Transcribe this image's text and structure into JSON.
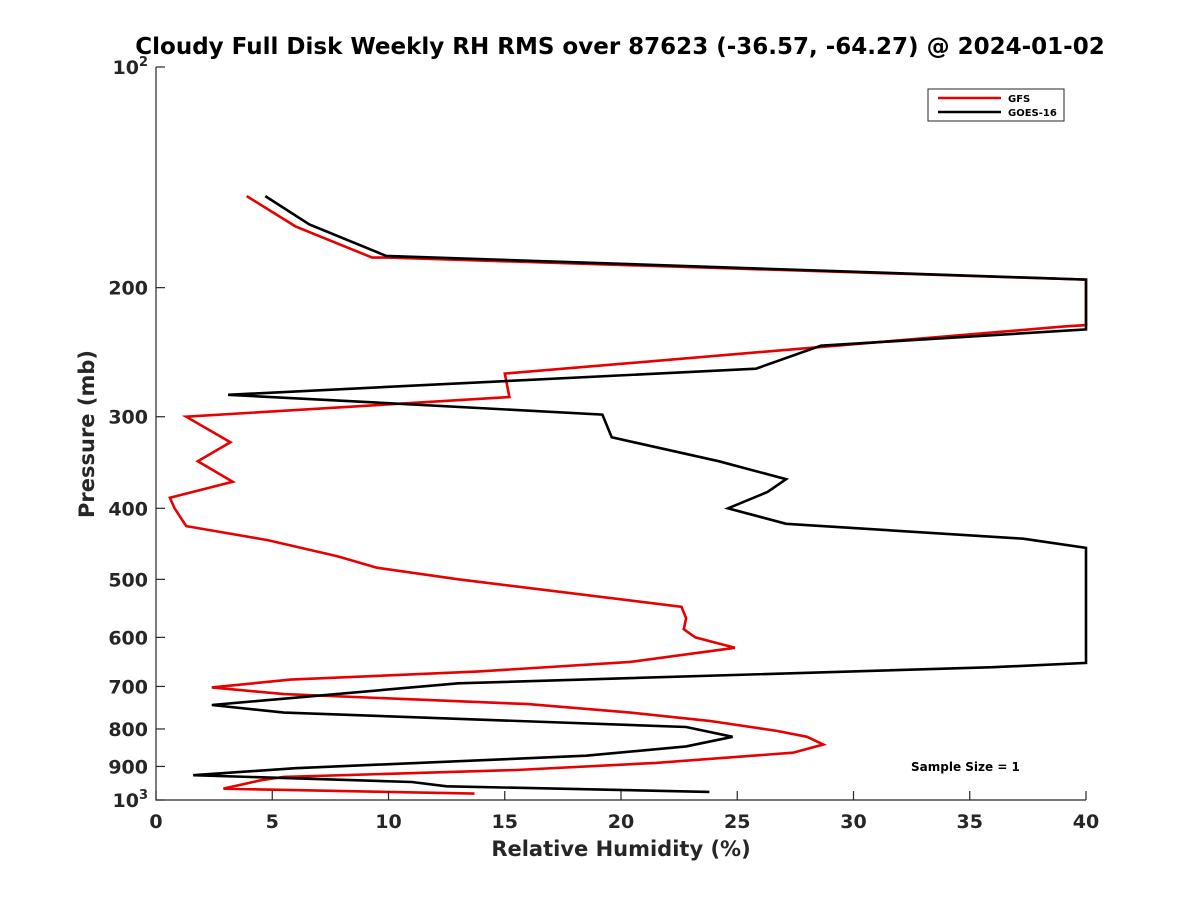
{
  "chart_data": {
    "type": "line",
    "title": "Cloudy Full Disk Weekly RH RMS over 87623 (-36.57, -64.27) @ 2024-01-02",
    "xlabel": "Relative Humidity (%)",
    "ylabel": "Pressure (mb)",
    "xlim": [
      0,
      40
    ],
    "ylim": [
      100,
      1000
    ],
    "y_scale": "log",
    "y_reversed": true,
    "grid": false,
    "legend_position": "top-right",
    "x_ticks": [
      0,
      5,
      10,
      15,
      20,
      25,
      30,
      35,
      40
    ],
    "y_ticks": [
      {
        "value": 100,
        "base": "10",
        "exp": "2"
      },
      {
        "value": 200,
        "label": "200"
      },
      {
        "value": 300,
        "label": "300"
      },
      {
        "value": 400,
        "label": "400"
      },
      {
        "value": 500,
        "label": "500"
      },
      {
        "value": 600,
        "label": "600"
      },
      {
        "value": 700,
        "label": "700"
      },
      {
        "value": 800,
        "label": "800"
      },
      {
        "value": 900,
        "label": "900"
      },
      {
        "value": 1000,
        "base": "10",
        "exp": "3"
      }
    ],
    "series": [
      {
        "name": "GFS",
        "color": "#e60000",
        "points": [
          [
            3.9,
            150
          ],
          [
            6.0,
            165
          ],
          [
            9.3,
            182
          ],
          [
            10.0,
            182
          ],
          [
            40.0,
            195
          ],
          [
            40.0,
            225
          ],
          [
            39.0,
            226
          ],
          [
            15.0,
            262
          ],
          [
            15.2,
            282
          ],
          [
            1.3,
            300
          ],
          [
            3.2,
            325
          ],
          [
            1.8,
            345
          ],
          [
            3.3,
            368
          ],
          [
            0.6,
            387
          ],
          [
            0.8,
            400
          ],
          [
            1.3,
            423
          ],
          [
            4.8,
            442
          ],
          [
            7.8,
            465
          ],
          [
            9.5,
            482
          ],
          [
            13.0,
            500
          ],
          [
            22.6,
            545
          ],
          [
            22.8,
            565
          ],
          [
            22.7,
            585
          ],
          [
            23.2,
            600
          ],
          [
            24.9,
            620
          ],
          [
            20.4,
            648
          ],
          [
            13.8,
            668
          ],
          [
            5.8,
            685
          ],
          [
            2.4,
            702
          ],
          [
            5.5,
            717
          ],
          [
            16.0,
            740
          ],
          [
            20.4,
            760
          ],
          [
            23.8,
            780
          ],
          [
            26.7,
            805
          ],
          [
            28.0,
            820
          ],
          [
            28.7,
            840
          ],
          [
            27.4,
            862
          ],
          [
            21.5,
            890
          ],
          [
            15.5,
            910
          ],
          [
            5.5,
            930
          ],
          [
            4.5,
            940
          ],
          [
            2.9,
            965
          ],
          [
            13.7,
            980
          ]
        ]
      },
      {
        "name": "GOES-16",
        "color": "#000000",
        "points": [
          [
            4.7,
            150
          ],
          [
            6.6,
            164
          ],
          [
            9.9,
            181
          ],
          [
            40.0,
            195
          ],
          [
            40.0,
            228
          ],
          [
            28.6,
            240
          ],
          [
            25.8,
            258
          ],
          [
            3.1,
            280
          ],
          [
            9.5,
            287
          ],
          [
            19.2,
            298
          ],
          [
            19.6,
            320
          ],
          [
            24.2,
            345
          ],
          [
            27.1,
            365
          ],
          [
            26.3,
            380
          ],
          [
            24.6,
            400
          ],
          [
            27.1,
            420
          ],
          [
            37.3,
            440
          ],
          [
            40.0,
            453
          ],
          [
            40.0,
            650
          ],
          [
            36.0,
            659
          ],
          [
            13.0,
            693
          ],
          [
            2.4,
            742
          ],
          [
            5.5,
            760
          ],
          [
            22.8,
            795
          ],
          [
            24.8,
            820
          ],
          [
            22.8,
            845
          ],
          [
            18.5,
            870
          ],
          [
            6.0,
            905
          ],
          [
            1.6,
            925
          ],
          [
            11.0,
            945
          ],
          [
            12.5,
            958
          ],
          [
            23.8,
            975
          ]
        ]
      }
    ],
    "annotation": "Sample Size = 1"
  }
}
